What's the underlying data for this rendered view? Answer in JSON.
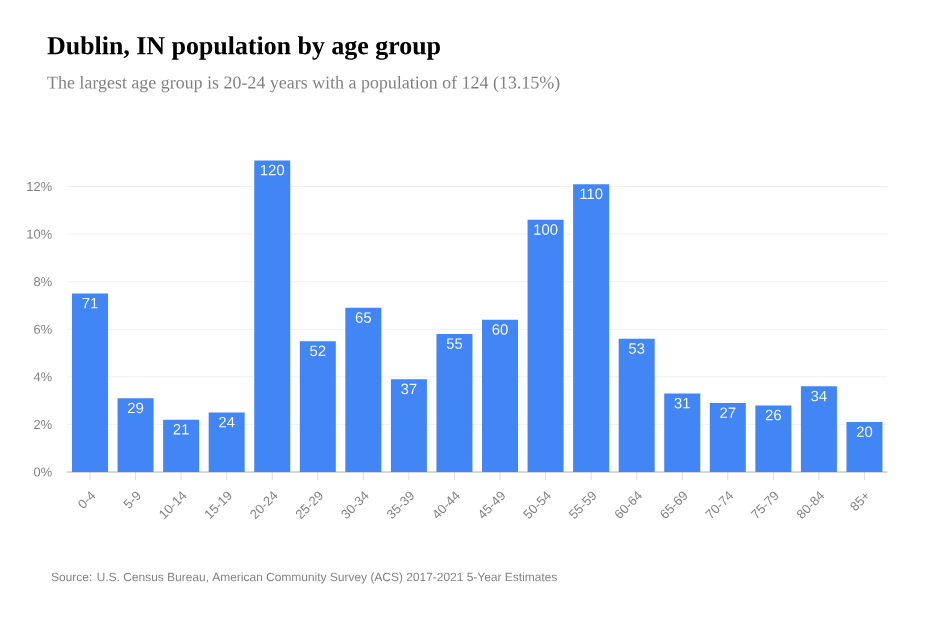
{
  "chart_data": {
    "type": "bar",
    "title": "Dublin, IN population by age group",
    "subtitle": "The largest age group is 20-24 years with a population of 124 (13.15%)",
    "categories": [
      "0-4",
      "5-9",
      "10-14",
      "15-19",
      "20-24",
      "25-29",
      "30-34",
      "35-39",
      "40-44",
      "45-49",
      "50-54",
      "55-59",
      "60-64",
      "65-69",
      "70-74",
      "75-79",
      "80-84",
      "85+"
    ],
    "values": [
      7.5,
      3.1,
      2.2,
      2.5,
      13.1,
      5.5,
      6.9,
      3.9,
      5.8,
      6.4,
      10.6,
      12.1,
      5.6,
      3.3,
      2.9,
      2.8,
      3.6,
      2.1
    ],
    "color": "#4285f4",
    "ylim": [
      0,
      13.2
    ],
    "yticks": [
      {
        "value": 0,
        "label": "0%"
      },
      {
        "value": 2,
        "label": "2%"
      },
      {
        "value": 4,
        "label": "4%"
      },
      {
        "value": 6,
        "label": "6%"
      },
      {
        "value": 8,
        "label": "8%"
      },
      {
        "value": 10,
        "label": "10%"
      },
      {
        "value": 12,
        "label": "12%"
      }
    ],
    "grid": "y",
    "annotations": [
      "Source: U.S. Census Bureau, American Community Survey (ACS) 2017-2021 5-Year Estimates",
      {
        "text": "71",
        "x": "0-4",
        "y": 7.5
      },
      {
        "text": "29",
        "x": "5-9",
        "y": 3.1
      },
      {
        "text": "21",
        "x": "10-14",
        "y": 2.2
      },
      {
        "text": "24",
        "x": "15-19",
        "y": 2.5
      },
      {
        "text": "120",
        "x": "20-24",
        "y": 13.1
      },
      {
        "text": "52",
        "x": "25-29",
        "y": 5.5
      },
      {
        "text": "65",
        "x": "30-34",
        "y": 6.9
      },
      {
        "text": "37",
        "x": "35-39",
        "y": 3.9
      },
      {
        "text": "55",
        "x": "40-44",
        "y": 5.8
      },
      {
        "text": "60",
        "x": "45-49",
        "y": 6.4
      },
      {
        "text": "100",
        "x": "50-54",
        "y": 10.6
      },
      {
        "text": "110",
        "x": "55-59",
        "y": 12.1
      },
      {
        "text": "53",
        "x": "60-64",
        "y": 5.6
      },
      {
        "text": "31",
        "x": "65-69",
        "y": 3.3
      },
      {
        "text": "27",
        "x": "70-74",
        "y": 2.9
      },
      {
        "text": "26",
        "x": "75-79",
        "y": 2.8
      },
      {
        "text": "34",
        "x": "80-84",
        "y": 3.6
      },
      {
        "text": "20",
        "x": "85+",
        "y": 2.1
      }
    ]
  }
}
